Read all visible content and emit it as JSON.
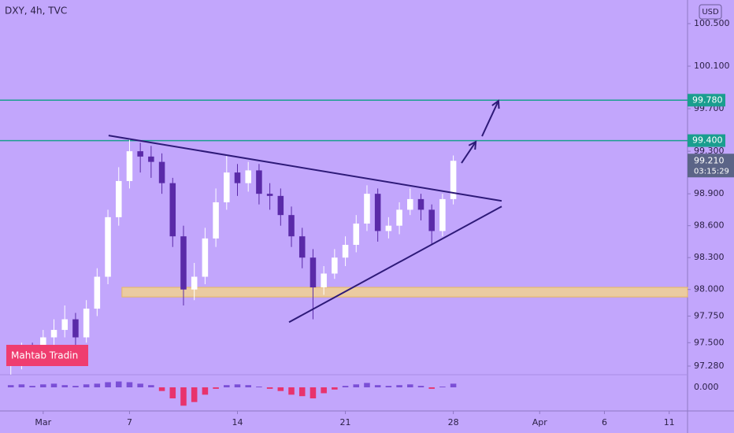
{
  "chart_data": {
    "type": "candlestick",
    "title": "DXY, 4h, TVC",
    "currency": "USD",
    "watermark": "Mahtab Tradin",
    "x": [
      -1.5,
      -1,
      -0.5,
      0,
      0.5,
      1,
      1.5,
      2,
      2.5,
      3,
      3.5,
      4,
      4.5,
      5,
      5.5,
      6,
      6.5,
      7,
      7.5,
      8,
      8.5,
      9,
      9.5,
      10,
      10.5,
      11,
      11.5,
      12,
      12.5,
      13,
      13.5,
      14,
      14.5,
      15,
      15.5,
      16,
      16.5,
      17,
      17.5,
      18,
      18.5,
      19
    ],
    "open": [
      97.28,
      97.32,
      97.42,
      97.38,
      97.55,
      97.62,
      97.72,
      97.55,
      97.82,
      98.12,
      98.68,
      99.02,
      99.3,
      99.25,
      99.2,
      99.0,
      98.5,
      98.0,
      98.12,
      98.48,
      98.82,
      99.1,
      99.0,
      99.12,
      98.9,
      98.88,
      98.7,
      98.5,
      98.3,
      98.02,
      98.15,
      98.3,
      98.42,
      98.62,
      98.9,
      98.55,
      98.6,
      98.75,
      98.85,
      98.75,
      98.55,
      98.85
    ],
    "high": [
      97.4,
      97.5,
      97.5,
      97.62,
      97.72,
      97.85,
      97.78,
      97.9,
      98.2,
      98.75,
      99.15,
      99.42,
      99.38,
      99.35,
      99.28,
      99.05,
      98.6,
      98.25,
      98.58,
      98.95,
      99.27,
      99.18,
      99.2,
      99.18,
      99.0,
      98.95,
      98.78,
      98.58,
      98.38,
      98.22,
      98.38,
      98.5,
      98.7,
      98.98,
      98.95,
      98.68,
      98.82,
      98.95,
      98.9,
      98.8,
      98.9,
      99.26
    ],
    "low": [
      97.2,
      97.25,
      97.3,
      97.3,
      97.48,
      97.55,
      97.42,
      97.5,
      97.75,
      98.05,
      98.6,
      98.95,
      99.1,
      99.05,
      98.9,
      98.4,
      97.85,
      97.9,
      98.05,
      98.4,
      98.75,
      98.88,
      98.92,
      98.8,
      98.75,
      98.6,
      98.4,
      98.2,
      97.72,
      97.95,
      98.1,
      98.22,
      98.35,
      98.55,
      98.45,
      98.48,
      98.52,
      98.7,
      98.65,
      98.42,
      98.5,
      98.8
    ],
    "close": [
      97.32,
      97.42,
      97.38,
      97.55,
      97.62,
      97.72,
      97.55,
      97.82,
      98.12,
      98.68,
      99.02,
      99.3,
      99.25,
      99.2,
      99.0,
      98.5,
      98.0,
      98.12,
      98.48,
      98.82,
      99.1,
      99.0,
      99.12,
      98.9,
      98.88,
      98.7,
      98.5,
      98.3,
      98.02,
      98.15,
      98.3,
      98.42,
      98.62,
      98.9,
      98.55,
      98.6,
      98.75,
      98.85,
      98.75,
      98.55,
      98.85,
      99.21
    ],
    "up_color": "#ffffff",
    "down_color": "#5a2aa8",
    "xlim": [
      -2.0,
      29.85
    ],
    "ylim": [
      97.206,
      100.722
    ],
    "xticks": [
      {
        "value": 0,
        "label": "Mar"
      },
      {
        "value": 4,
        "label": "7"
      },
      {
        "value": 9,
        "label": "14"
      },
      {
        "value": 14,
        "label": "21"
      },
      {
        "value": 19,
        "label": "28"
      },
      {
        "value": 23,
        "label": "Apr"
      },
      {
        "value": 26,
        "label": "6"
      },
      {
        "value": 29,
        "label": "11"
      }
    ],
    "yticks": [
      {
        "value": 100.5,
        "label": "100.500"
      },
      {
        "value": 100.1,
        "label": "100.100"
      },
      {
        "value": 99.7,
        "label": "99.700"
      },
      {
        "value": 99.3,
        "label": "99.300"
      },
      {
        "value": 98.9,
        "label": "98.900"
      },
      {
        "value": 98.6,
        "label": "98.600"
      },
      {
        "value": 98.3,
        "label": "98.300"
      },
      {
        "value": 98.0,
        "label": "98.000"
      },
      {
        "value": 97.75,
        "label": "97.750"
      },
      {
        "value": 97.5,
        "label": "97.500"
      },
      {
        "value": 97.28,
        "label": "97.280"
      }
    ],
    "levels": [
      {
        "value": 99.78,
        "label": "99.780"
      },
      {
        "value": 99.4,
        "label": "99.400"
      }
    ],
    "level_color": "#1a9e8f",
    "last": {
      "value": 99.21,
      "label": "99.210",
      "countdown": "03:15:29"
    },
    "zone": {
      "from": 97.93,
      "to": 98.02,
      "x_start": 3.65,
      "color": "#f5d58a"
    },
    "trendlines": [
      {
        "x": [
          3.03,
          21.24
        ],
        "y": [
          99.448,
          98.833
        ]
      },
      {
        "x": [
          11.39,
          21.24
        ],
        "y": [
          97.693,
          98.781
        ]
      }
    ],
    "arrows": [
      {
        "x": [
          19.38,
          20.04
        ],
        "y": [
          99.189,
          99.389
        ]
      },
      {
        "x": [
          20.33,
          21.09
        ],
        "y": [
          99.441,
          99.774
        ]
      }
    ],
    "line_color": "#2e1a78",
    "indicator": {
      "values": [
        0.03,
        0.04,
        0.02,
        0.04,
        0.05,
        0.03,
        0.02,
        0.04,
        0.05,
        0.07,
        0.08,
        0.07,
        0.05,
        0.03,
        -0.05,
        -0.15,
        -0.25,
        -0.2,
        -0.1,
        -0.02,
        0.03,
        0.04,
        0.03,
        0.01,
        -0.02,
        -0.05,
        -0.1,
        -0.12,
        -0.15,
        -0.08,
        -0.03,
        0.02,
        0.04,
        0.06,
        0.03,
        0.02,
        0.03,
        0.04,
        0.02,
        -0.02,
        0.01,
        0.05
      ],
      "ylim": [
        -0.3,
        0.15
      ],
      "yticks": [
        {
          "value": 0,
          "label": "0.000"
        }
      ],
      "positive_color": "#7b4fd6",
      "negative_color": "#e8336d"
    }
  }
}
